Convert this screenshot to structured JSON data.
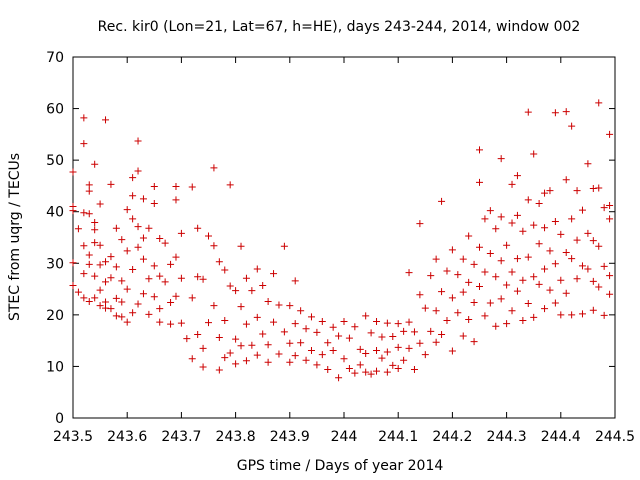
{
  "chart_data": {
    "type": "scatter",
    "title": "Rec. kir0 (Lon=21, Lat=67, h=HE), days 243-244, 2014, window 002",
    "xlabel": "GPS time / Days of year 2014",
    "ylabel": "STEC from uqrg / TECUs",
    "xlim": [
      243.5,
      244.5
    ],
    "ylim": [
      0,
      70
    ],
    "xticks": [
      "243.5",
      "243.6",
      "243.7",
      "243.8",
      "243.9",
      "244",
      "244.1",
      "244.2",
      "244.3",
      "244.4",
      "244.5"
    ],
    "yticks": [
      "0",
      "10",
      "20",
      "30",
      "40",
      "50",
      "60",
      "70"
    ],
    "grid": false,
    "marker": "plus",
    "color": "#cc0000",
    "series": [
      {
        "points": [
          [
            243.5,
            47.7
          ],
          [
            243.5,
            41
          ],
          [
            243.5,
            40.2
          ],
          [
            243.5,
            30.1
          ],
          [
            243.5,
            25.7
          ],
          [
            243.51,
            36.7
          ],
          [
            243.51,
            24.4
          ],
          [
            243.52,
            58.2
          ],
          [
            243.52,
            53.2
          ],
          [
            243.52,
            39.8
          ],
          [
            243.52,
            33.4
          ],
          [
            243.52,
            28
          ],
          [
            243.52,
            23.3
          ],
          [
            243.53,
            45.2
          ],
          [
            243.53,
            44
          ],
          [
            243.53,
            39.6
          ],
          [
            243.53,
            31.6
          ],
          [
            243.53,
            29.8
          ],
          [
            243.53,
            22.6
          ],
          [
            243.54,
            49.2
          ],
          [
            243.54,
            37.9
          ],
          [
            243.54,
            36.5
          ],
          [
            243.54,
            34
          ],
          [
            243.54,
            27.5
          ],
          [
            243.54,
            23.3
          ],
          [
            243.55,
            41.5
          ],
          [
            243.55,
            33.5
          ],
          [
            243.55,
            29.7
          ],
          [
            243.55,
            24.8
          ],
          [
            243.55,
            21.8
          ],
          [
            243.56,
            57.8
          ],
          [
            243.56,
            30.3
          ],
          [
            243.56,
            26.4
          ],
          [
            243.56,
            22.5
          ],
          [
            243.56,
            21.3
          ],
          [
            243.57,
            45.3
          ],
          [
            243.57,
            31.3
          ],
          [
            243.57,
            27.2
          ],
          [
            243.57,
            21.2
          ],
          [
            243.58,
            36.8
          ],
          [
            243.58,
            29.3
          ],
          [
            243.58,
            23.2
          ],
          [
            243.58,
            19.8
          ],
          [
            243.59,
            34.6
          ],
          [
            243.59,
            26.6
          ],
          [
            243.59,
            22.5
          ],
          [
            243.59,
            19.6
          ],
          [
            243.6,
            40.4
          ],
          [
            243.6,
            32.4
          ],
          [
            243.6,
            25
          ],
          [
            243.6,
            18.6
          ],
          [
            243.61,
            46.6
          ],
          [
            243.61,
            43.1
          ],
          [
            243.61,
            38.6
          ],
          [
            243.61,
            28.8
          ],
          [
            243.61,
            20.4
          ],
          [
            243.62,
            53.7
          ],
          [
            243.62,
            47.9
          ],
          [
            243.62,
            37.1
          ],
          [
            243.62,
            33.1
          ],
          [
            243.62,
            22.1
          ],
          [
            243.63,
            42.5
          ],
          [
            243.63,
            34.9
          ],
          [
            243.63,
            30.8
          ],
          [
            243.63,
            24.1
          ],
          [
            243.64,
            36.8
          ],
          [
            243.64,
            27
          ],
          [
            243.64,
            20.1
          ],
          [
            243.65,
            44.9
          ],
          [
            243.65,
            41.6
          ],
          [
            243.65,
            29.5
          ],
          [
            243.65,
            23.5
          ],
          [
            243.66,
            34.8
          ],
          [
            243.66,
            27.5
          ],
          [
            243.66,
            21.2
          ],
          [
            243.66,
            18.6
          ],
          [
            243.67,
            33.9
          ],
          [
            243.67,
            26.4
          ],
          [
            243.68,
            29.8
          ],
          [
            243.68,
            22.4
          ],
          [
            243.68,
            18.2
          ],
          [
            243.69,
            44.9
          ],
          [
            243.69,
            42.3
          ],
          [
            243.69,
            31.2
          ],
          [
            243.69,
            23.6
          ],
          [
            243.7,
            35.8
          ],
          [
            243.7,
            27.1
          ],
          [
            243.7,
            18.4
          ],
          [
            243.71,
            15.4
          ],
          [
            243.72,
            44.8
          ],
          [
            243.72,
            23.3
          ],
          [
            243.72,
            11.5
          ],
          [
            243.73,
            36.8
          ],
          [
            243.73,
            27.4
          ],
          [
            243.73,
            16.2
          ],
          [
            243.74,
            26.9
          ],
          [
            243.74,
            13.5
          ],
          [
            243.74,
            9.9
          ],
          [
            243.75,
            35.3
          ],
          [
            243.75,
            18.5
          ],
          [
            243.76,
            48.5
          ],
          [
            243.76,
            33.4
          ],
          [
            243.76,
            21.8
          ],
          [
            243.77,
            30.3
          ],
          [
            243.77,
            15.6
          ],
          [
            243.77,
            9.3
          ],
          [
            243.78,
            28.7
          ],
          [
            243.78,
            18.9
          ],
          [
            243.78,
            11.7
          ],
          [
            243.79,
            45.2
          ],
          [
            243.79,
            25.6
          ],
          [
            243.79,
            12.6
          ],
          [
            243.8,
            24.7
          ],
          [
            243.8,
            15.3
          ],
          [
            243.8,
            10.5
          ],
          [
            243.81,
            33.3
          ],
          [
            243.81,
            21.6
          ],
          [
            243.81,
            14
          ],
          [
            243.82,
            27.1
          ],
          [
            243.82,
            18.2
          ],
          [
            243.82,
            11.1
          ],
          [
            243.83,
            24.7
          ],
          [
            243.83,
            14.1
          ],
          [
            243.84,
            28.9
          ],
          [
            243.84,
            19.5
          ],
          [
            243.84,
            12.2
          ],
          [
            243.85,
            25.7
          ],
          [
            243.85,
            16.3
          ],
          [
            243.86,
            22.6
          ],
          [
            243.86,
            14.2
          ],
          [
            243.86,
            10.8
          ],
          [
            243.87,
            28
          ],
          [
            243.87,
            18.6
          ],
          [
            243.88,
            21.9
          ],
          [
            243.88,
            12.4
          ],
          [
            243.89,
            33.3
          ],
          [
            243.89,
            16.7
          ],
          [
            243.9,
            21.8
          ],
          [
            243.9,
            14.5
          ],
          [
            243.9,
            10.8
          ],
          [
            243.91,
            26.6
          ],
          [
            243.91,
            18.3
          ],
          [
            243.91,
            12.1
          ],
          [
            243.92,
            20.8
          ],
          [
            243.92,
            14.6
          ],
          [
            243.93,
            17.3
          ],
          [
            243.93,
            11.2
          ],
          [
            243.94,
            19.6
          ],
          [
            243.94,
            13.1
          ],
          [
            243.95,
            16.6
          ],
          [
            243.95,
            10.3
          ],
          [
            243.96,
            18.7
          ],
          [
            243.96,
            12.3
          ],
          [
            243.97,
            14.6
          ],
          [
            243.97,
            9.4
          ],
          [
            243.98,
            17.6
          ],
          [
            243.98,
            13.1
          ],
          [
            243.99,
            15.9
          ],
          [
            243.99,
            7.8
          ],
          [
            244.0,
            18.7
          ],
          [
            244.0,
            11.5
          ],
          [
            244.01,
            15.5
          ],
          [
            244.01,
            9.6
          ],
          [
            244.02,
            17.7
          ],
          [
            244.02,
            8.7
          ],
          [
            244.03,
            13.3
          ],
          [
            244.03,
            10.3
          ],
          [
            244.04,
            19.8
          ],
          [
            244.04,
            12.5
          ],
          [
            244.04,
            8.9
          ],
          [
            244.05,
            16.5
          ],
          [
            244.05,
            8.5
          ],
          [
            244.06,
            18.7
          ],
          [
            244.06,
            13.1
          ],
          [
            244.06,
            9.1
          ],
          [
            244.07,
            15.7
          ],
          [
            244.07,
            11.6
          ],
          [
            244.08,
            18.4
          ],
          [
            244.08,
            12.8
          ],
          [
            244.08,
            8.9
          ],
          [
            244.09,
            15.8
          ],
          [
            244.09,
            10.2
          ],
          [
            244.1,
            18.3
          ],
          [
            244.1,
            13.7
          ],
          [
            244.1,
            9.6
          ],
          [
            244.11,
            16.8
          ],
          [
            244.11,
            11.2
          ],
          [
            244.12,
            28.2
          ],
          [
            244.12,
            18.6
          ],
          [
            244.12,
            13.5
          ],
          [
            244.13,
            16.7
          ],
          [
            244.13,
            9.4
          ],
          [
            244.14,
            37.7
          ],
          [
            244.14,
            23.9
          ],
          [
            244.14,
            14.5
          ],
          [
            244.15,
            21.3
          ],
          [
            244.15,
            12.3
          ],
          [
            244.16,
            27.6
          ],
          [
            244.16,
            16.8
          ],
          [
            244.17,
            30.8
          ],
          [
            244.17,
            20.8
          ],
          [
            244.17,
            14.7
          ],
          [
            244.18,
            42
          ],
          [
            244.18,
            24.5
          ],
          [
            244.18,
            16.2
          ],
          [
            244.19,
            28.5
          ],
          [
            244.19,
            18.9
          ],
          [
            244.2,
            32.6
          ],
          [
            244.2,
            23.3
          ],
          [
            244.2,
            13
          ],
          [
            244.21,
            27.8
          ],
          [
            244.21,
            20.4
          ],
          [
            244.22,
            30.8
          ],
          [
            244.22,
            24.4
          ],
          [
            244.22,
            15.9
          ],
          [
            244.23,
            35.3
          ],
          [
            244.23,
            26.3
          ],
          [
            244.23,
            19.1
          ],
          [
            244.24,
            29.8
          ],
          [
            244.24,
            22.4
          ],
          [
            244.24,
            14.8
          ],
          [
            244.25,
            52
          ],
          [
            244.25,
            45.7
          ],
          [
            244.25,
            33.1
          ],
          [
            244.25,
            25.5
          ],
          [
            244.26,
            38.6
          ],
          [
            244.26,
            28.3
          ],
          [
            244.26,
            19.8
          ],
          [
            244.27,
            40.2
          ],
          [
            244.27,
            31.9
          ],
          [
            244.27,
            22.3
          ],
          [
            244.28,
            36.7
          ],
          [
            244.28,
            27.4
          ],
          [
            244.28,
            17.8
          ],
          [
            244.29,
            50.3
          ],
          [
            244.29,
            39
          ],
          [
            244.29,
            30.5
          ],
          [
            244.29,
            23.1
          ],
          [
            244.3,
            33.5
          ],
          [
            244.3,
            25.8
          ],
          [
            244.3,
            18.3
          ],
          [
            244.31,
            45.3
          ],
          [
            244.31,
            37.8
          ],
          [
            244.31,
            28.3
          ],
          [
            244.31,
            20.8
          ],
          [
            244.32,
            47
          ],
          [
            244.32,
            39.3
          ],
          [
            244.32,
            30.9
          ],
          [
            244.32,
            24.6
          ],
          [
            244.33,
            36.2
          ],
          [
            244.33,
            26.7
          ],
          [
            244.33,
            18.9
          ],
          [
            244.34,
            59.3
          ],
          [
            244.34,
            42.3
          ],
          [
            244.34,
            31.2
          ],
          [
            244.34,
            22.2
          ],
          [
            244.35,
            51.2
          ],
          [
            244.35,
            37.4
          ],
          [
            244.35,
            27.4
          ],
          [
            244.35,
            19.5
          ],
          [
            244.36,
            41.6
          ],
          [
            244.36,
            33.8
          ],
          [
            244.36,
            25.9
          ],
          [
            244.37,
            43.6
          ],
          [
            244.37,
            36.9
          ],
          [
            244.37,
            28.9
          ],
          [
            244.37,
            21.2
          ],
          [
            244.38,
            44.1
          ],
          [
            244.38,
            32.4
          ],
          [
            244.38,
            24.8
          ],
          [
            244.39,
            59.2
          ],
          [
            244.39,
            38.1
          ],
          [
            244.39,
            29.9
          ],
          [
            244.39,
            22.3
          ],
          [
            244.4,
            35.6
          ],
          [
            244.4,
            26.7
          ],
          [
            244.4,
            20
          ],
          [
            244.41,
            59.4
          ],
          [
            244.41,
            46.2
          ],
          [
            244.41,
            32.1
          ],
          [
            244.41,
            24.2
          ],
          [
            244.42,
            56.6
          ],
          [
            244.42,
            38.6
          ],
          [
            244.42,
            30.9
          ],
          [
            244.42,
            20
          ],
          [
            244.43,
            44.1
          ],
          [
            244.43,
            34.5
          ],
          [
            244.43,
            27
          ],
          [
            244.44,
            40.3
          ],
          [
            244.44,
            29.5
          ],
          [
            244.44,
            20.2
          ],
          [
            244.45,
            49.3
          ],
          [
            244.45,
            35.8
          ],
          [
            244.45,
            28.9
          ],
          [
            244.46,
            44.5
          ],
          [
            244.46,
            34.4
          ],
          [
            244.46,
            26.5
          ],
          [
            244.46,
            20.9
          ],
          [
            244.47,
            61.1
          ],
          [
            244.47,
            44.6
          ],
          [
            244.47,
            33.3
          ],
          [
            244.47,
            25.4
          ],
          [
            244.48,
            40.8
          ],
          [
            244.48,
            29.4
          ],
          [
            244.48,
            19.9
          ],
          [
            244.49,
            55
          ],
          [
            244.49,
            41.2
          ],
          [
            244.49,
            38.6
          ],
          [
            244.49,
            27.6
          ],
          [
            244.49,
            24
          ]
        ]
      }
    ]
  }
}
